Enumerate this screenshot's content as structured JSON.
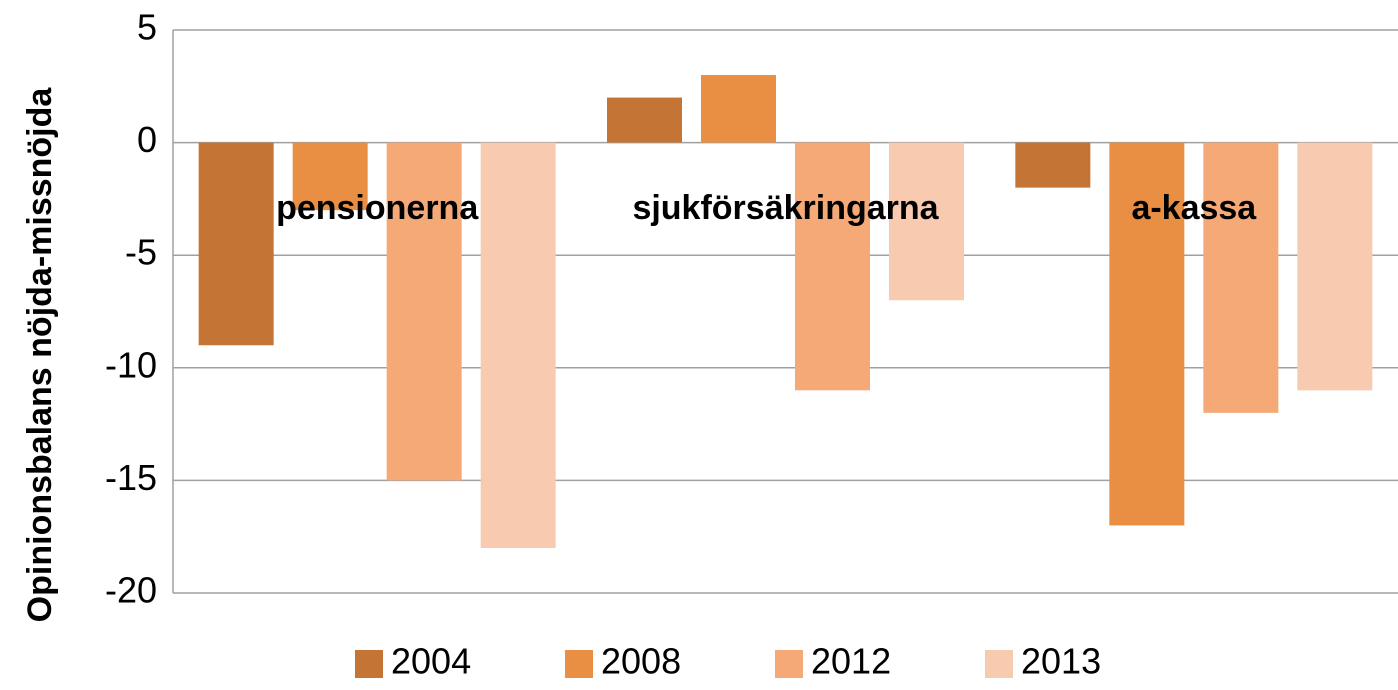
{
  "chart_data": {
    "type": "bar",
    "y_label": "Opinionsbalans nöjda-missnöjda",
    "categories": [
      "pensionerna",
      "sjukförsäkringarna",
      "a-kassa"
    ],
    "series": [
      {
        "name": "2004",
        "color": "#c47535",
        "values": [
          -9,
          2,
          -2
        ]
      },
      {
        "name": "2008",
        "color": "#e98f43",
        "values": [
          -3,
          3,
          -17
        ]
      },
      {
        "name": "2012",
        "color": "#f5a977",
        "values": [
          -15,
          -11,
          -12
        ]
      },
      {
        "name": "2013",
        "color": "#f8cbb0",
        "values": [
          -18,
          -7,
          -11
        ]
      }
    ],
    "ylim": [
      -20,
      5
    ],
    "yticks": [
      -20,
      -15,
      -10,
      -5,
      0,
      5
    ],
    "grid": true,
    "legend": "bottom"
  }
}
